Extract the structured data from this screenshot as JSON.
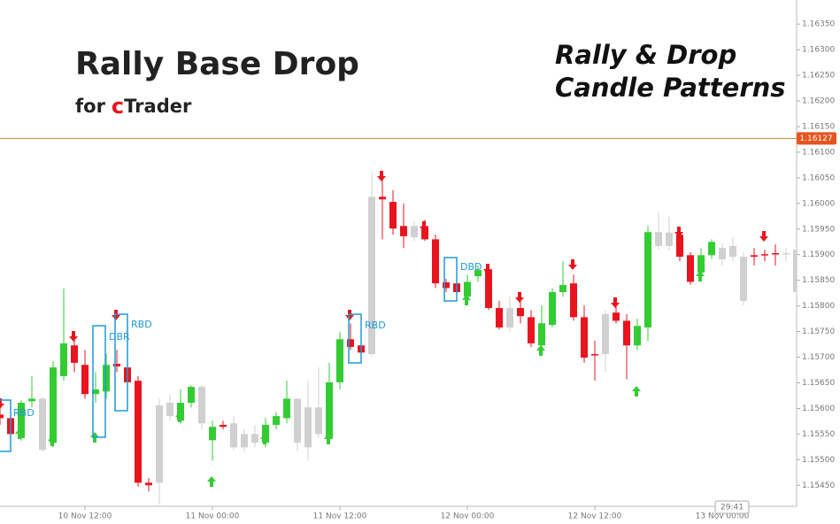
{
  "chart_data": {
    "type": "candlestick",
    "title": "Rally Base Drop",
    "subtitle": [
      "for",
      "c",
      "Trader"
    ],
    "heading_lines": [
      "Rally & Drop",
      "Candle Patterns"
    ],
    "categories": [
      null,
      null,
      null,
      null,
      null,
      null,
      null,
      null,
      "10 Nov 12:00",
      null,
      null,
      null,
      null,
      null,
      null,
      null,
      null,
      null,
      null,
      null,
      "11 Nov 00:00",
      null,
      null,
      null,
      null,
      null,
      null,
      null,
      null,
      null,
      null,
      null,
      "11 Nov 12:00",
      null,
      null,
      null,
      null,
      null,
      null,
      null,
      null,
      null,
      null,
      null,
      "12 Nov 00:00",
      null,
      null,
      null,
      null,
      null,
      null,
      null,
      null,
      null,
      null,
      null,
      "12 Nov 12:00",
      null,
      null,
      null,
      null,
      null,
      null,
      null,
      null,
      null,
      null,
      null,
      "13 Nov 00:00",
      null,
      null,
      null,
      null,
      null,
      null,
      null
    ],
    "open": [
      1.15588,
      1.15581,
      1.15542,
      1.15614,
      1.15619,
      1.15533,
      1.15663,
      1.15723,
      1.15685,
      1.15628,
      1.15633,
      1.15687,
      1.1568,
      1.15654,
      1.15455,
      1.15455,
      1.15611,
      1.15576,
      1.15611,
      1.15642,
      1.15538,
      1.15568,
      1.15571,
      1.15524,
      1.1555,
      1.15533,
      1.15568,
      1.15581,
      1.15619,
      1.15524,
      1.15602,
      1.15542,
      1.15651,
      1.15735,
      1.15723,
      1.15706,
      1.16013,
      1.16003,
      1.15956,
      1.15934,
      1.15956,
      1.1593,
      1.15846,
      1.15844,
      1.15818,
      1.15858,
      1.1587,
      1.15796,
      1.15758,
      1.15796,
      1.15778,
      1.15723,
      1.15763,
      1.15827,
      1.15844,
      1.15778,
      1.15706,
      1.15706,
      1.15787,
      1.15771,
      1.15723,
      1.15758,
      1.15944,
      1.15917,
      1.15939,
      1.15899,
      1.15865,
      1.15899,
      1.15913,
      1.15896,
      1.15896,
      1.15899,
      1.15901,
      1.15903,
      1.15901,
      1.1591
    ],
    "high": [
      1.15619,
      1.15593,
      1.15616,
      1.15663,
      1.15623,
      1.15692,
      1.15834,
      1.1574,
      1.15714,
      1.15671,
      1.15706,
      1.15714,
      1.15689,
      1.15663,
      1.15464,
      1.15619,
      1.15628,
      1.15637,
      1.15645,
      1.15645,
      1.15576,
      1.15576,
      1.15585,
      1.15559,
      1.15568,
      1.15581,
      1.15593,
      1.15654,
      1.15619,
      1.15654,
      1.1568,
      1.15689,
      1.15749,
      1.15766,
      1.15732,
      1.1606,
      1.16051,
      1.16026,
      1.16,
      1.15965,
      1.15968,
      1.15939,
      1.15853,
      1.15861,
      1.15861,
      1.15879,
      1.15879,
      1.1581,
      1.15818,
      1.1581,
      1.15792,
      1.15801,
      1.15835,
      1.15887,
      1.15861,
      1.15801,
      1.15732,
      1.15792,
      1.1581,
      1.15784,
      1.15775,
      1.15956,
      1.15982,
      1.15974,
      1.15944,
      1.15905,
      1.15913,
      1.1593,
      1.15922,
      1.15934,
      1.15905,
      1.15913,
      1.1591,
      1.1592,
      1.15913,
      1.15913
    ],
    "low": [
      1.15568,
      1.15542,
      1.15537,
      1.15602,
      1.15516,
      1.15524,
      1.15654,
      1.15671,
      1.15619,
      1.15611,
      1.15619,
      1.15671,
      1.15637,
      1.15447,
      1.15438,
      1.15412,
      1.15576,
      1.15571,
      1.15602,
      1.15559,
      1.15498,
      1.15559,
      1.15519,
      1.15516,
      1.15524,
      1.15524,
      1.15559,
      1.15571,
      1.15516,
      1.15498,
      1.15542,
      1.15533,
      1.15637,
      1.15714,
      1.15706,
      1.15702,
      1.1593,
      1.15939,
      1.15913,
      1.15927,
      1.15927,
      1.15835,
      1.15827,
      1.15818,
      1.1581,
      1.15847,
      1.15792,
      1.15754,
      1.15749,
      1.15766,
      1.1572,
      1.15714,
      1.15758,
      1.15818,
      1.15771,
      1.15689,
      1.15654,
      1.15671,
      1.15766,
      1.15657,
      1.15714,
      1.15732,
      1.1591,
      1.15908,
      1.15887,
      1.15841,
      1.15858,
      1.15892,
      1.15879,
      1.15887,
      1.15801,
      1.15879,
      1.15887,
      1.15879,
      1.15887,
      1.15818
    ],
    "close": [
      1.15581,
      1.1555,
      1.15611,
      1.15619,
      1.15519,
      1.1568,
      1.15727,
      1.15689,
      1.15628,
      1.15637,
      1.15685,
      1.15682,
      1.15651,
      1.15455,
      1.1545,
      1.15606,
      1.15585,
      1.15611,
      1.15642,
      1.15571,
      1.15564,
      1.15564,
      1.15524,
      1.1555,
      1.15533,
      1.15568,
      1.15585,
      1.15619,
      1.15533,
      1.15602,
      1.1555,
      1.15651,
      1.15735,
      1.1572,
      1.15709,
      1.16013,
      1.16008,
      1.15951,
      1.15936,
      1.15956,
      1.1593,
      1.15844,
      1.15835,
      1.15827,
      1.15847,
      1.1587,
      1.15796,
      1.15758,
      1.15796,
      1.1578,
      1.15727,
      1.15766,
      1.15827,
      1.15841,
      1.15778,
      1.15699,
      1.15704,
      1.15784,
      1.15771,
      1.15723,
      1.15761,
      1.15944,
      1.15917,
      1.15943,
      1.15896,
      1.15847,
      1.15899,
      1.15925,
      1.15891,
      1.15917,
      1.1581,
      1.15896,
      1.15899,
      1.15901,
      1.15903,
      1.15827
    ],
    "candle_colors": [
      "#e8141e",
      "#e8141e",
      "#33cc33",
      "#33cc33",
      "#d0d0d0",
      "#33cc33",
      "#33cc33",
      "#e8141e",
      "#e8141e",
      "#33cc33",
      "#33cc33",
      "#e8141e",
      "#e8141e",
      "#e8141e",
      "#e8141e",
      "#d0d0d0",
      "#d0d0d0",
      "#33cc33",
      "#33cc33",
      "#d0d0d0",
      "#33cc33",
      "#e8141e",
      "#d0d0d0",
      "#d0d0d0",
      "#d0d0d0",
      "#33cc33",
      "#33cc33",
      "#33cc33",
      "#d0d0d0",
      "#d0d0d0",
      "#d0d0d0",
      "#33cc33",
      "#33cc33",
      "#e8141e",
      "#e8141e",
      "#d0d0d0",
      "#e8141e",
      "#e8141e",
      "#e8141e",
      "#d0d0d0",
      "#e8141e",
      "#e8141e",
      "#e8141e",
      "#e8141e",
      "#33cc33",
      "#33cc33",
      "#e8141e",
      "#e8141e",
      "#d0d0d0",
      "#e8141e",
      "#e8141e",
      "#33cc33",
      "#33cc33",
      "#33cc33",
      "#e8141e",
      "#e8141e",
      "#e8141e",
      "#d0d0d0",
      "#e8141e",
      "#e8141e",
      "#33cc33",
      "#33cc33",
      "#d0d0d0",
      "#d0d0d0",
      "#e8141e",
      "#e8141e",
      "#33cc33",
      "#33cc33",
      "#d0d0d0",
      "#d0d0d0",
      "#d0d0d0",
      "#e8141e",
      "#e8141e",
      "#e8141e",
      "#d0d0d0",
      "#d0d0d0"
    ],
    "ylim": [
      1.15409,
      1.16397
    ],
    "yticks": [
      {
        "value": 1.1545,
        "label": "1.15450"
      },
      {
        "value": 1.155,
        "label": "1.15500"
      },
      {
        "value": 1.1555,
        "label": "1.15550"
      },
      {
        "value": 1.156,
        "label": "1.15600"
      },
      {
        "value": 1.1565,
        "label": "1.15650"
      },
      {
        "value": 1.157,
        "label": "1.15700"
      },
      {
        "value": 1.1575,
        "label": "1.15750"
      },
      {
        "value": 1.158,
        "label": "1.15800"
      },
      {
        "value": 1.1585,
        "label": "1.15850"
      },
      {
        "value": 1.159,
        "label": "1.15900"
      },
      {
        "value": 1.1595,
        "label": "1.15950"
      },
      {
        "value": 1.16,
        "label": "1.16000"
      },
      {
        "value": 1.1605,
        "label": "1.16050"
      },
      {
        "value": 1.161,
        "label": "1.16100"
      },
      {
        "value": 1.1615,
        "label": "1.16150"
      },
      {
        "value": 1.162,
        "label": "1.16200"
      },
      {
        "value": 1.1625,
        "label": "1.16250"
      },
      {
        "value": 1.163,
        "label": "1.16300"
      },
      {
        "value": 1.1635,
        "label": "1.16350"
      }
    ],
    "current_price": 1.16127,
    "current_price_color": "#e8541e",
    "annotations": [
      "RBD",
      "DBR",
      "RBD",
      "RBD",
      "DBD"
    ],
    "timer": "29:41"
  }
}
